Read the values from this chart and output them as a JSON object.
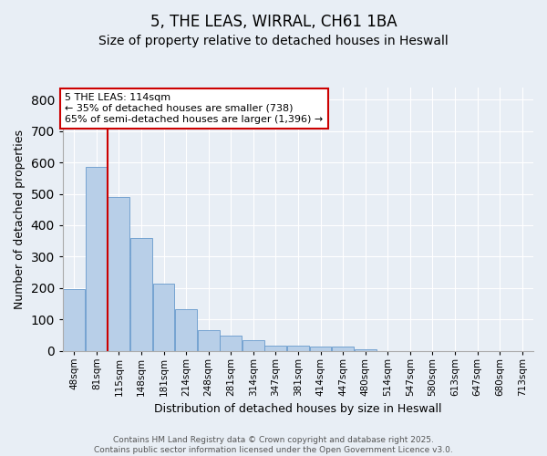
{
  "title": "5, THE LEAS, WIRRAL, CH61 1BA",
  "subtitle": "Size of property relative to detached houses in Heswall",
  "xlabel": "Distribution of detached houses by size in Heswall",
  "ylabel": "Number of detached properties",
  "bar_labels": [
    "48sqm",
    "81sqm",
    "115sqm",
    "148sqm",
    "181sqm",
    "214sqm",
    "248sqm",
    "281sqm",
    "314sqm",
    "347sqm",
    "381sqm",
    "414sqm",
    "447sqm",
    "480sqm",
    "514sqm",
    "547sqm",
    "580sqm",
    "613sqm",
    "647sqm",
    "680sqm",
    "713sqm"
  ],
  "bar_values": [
    195,
    585,
    490,
    360,
    215,
    133,
    65,
    47,
    35,
    17,
    17,
    12,
    12,
    6,
    0,
    0,
    0,
    0,
    0,
    0,
    0
  ],
  "bar_color": "#b8cfe8",
  "bar_edge_color": "#6699cc",
  "marker_index": 2,
  "marker_line_color": "#cc0000",
  "annotation_text": "5 THE LEAS: 114sqm\n← 35% of detached houses are smaller (738)\n65% of semi-detached houses are larger (1,396) →",
  "annotation_box_facecolor": "#ffffff",
  "annotation_box_edgecolor": "#cc0000",
  "ylim": [
    0,
    840
  ],
  "background_color": "#e8eef5",
  "plot_bg_color": "#e8eef5",
  "grid_color": "#ffffff",
  "footer_text": "Contains HM Land Registry data © Crown copyright and database right 2025.\nContains public sector information licensed under the Open Government Licence v3.0.",
  "title_fontsize": 12,
  "subtitle_fontsize": 10,
  "ylabel_fontsize": 9,
  "xlabel_fontsize": 9,
  "tick_fontsize": 7.5,
  "annotation_fontsize": 8,
  "footer_fontsize": 6.5
}
